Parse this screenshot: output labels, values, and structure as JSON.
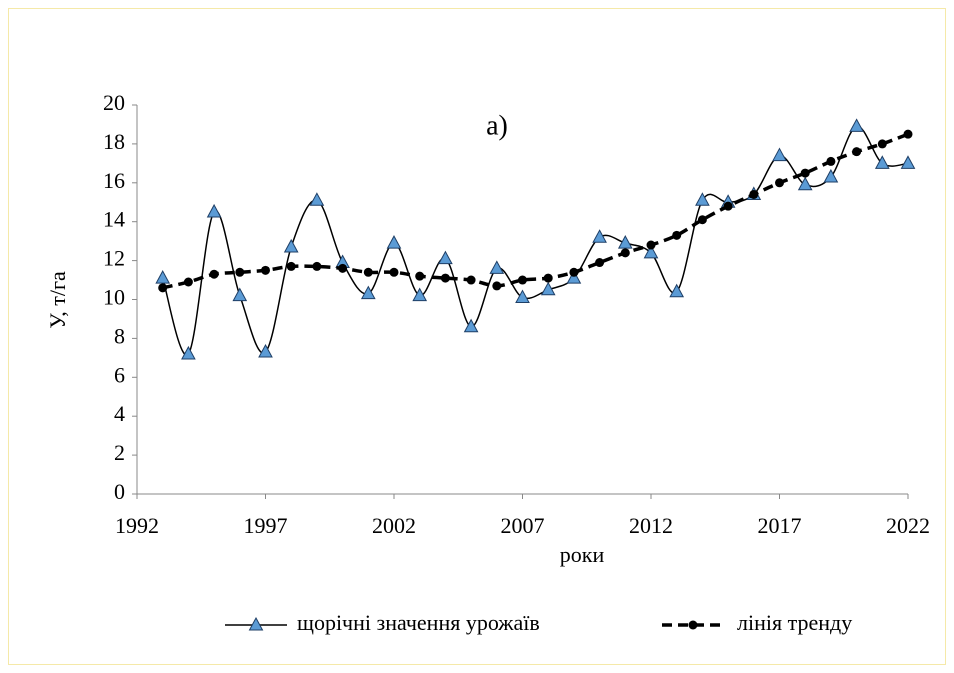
{
  "chart_data": {
    "type": "line",
    "annotation": "а)",
    "x_label": "роки",
    "y_label": "У, т/га",
    "x": [
      1993,
      1994,
      1995,
      1996,
      1997,
      1998,
      1999,
      2000,
      2001,
      2002,
      2003,
      2004,
      2005,
      2006,
      2007,
      2008,
      2009,
      2010,
      2011,
      2012,
      2013,
      2014,
      2015,
      2016,
      2017,
      2018,
      2019,
      2020,
      2021,
      2022
    ],
    "series": [
      {
        "name": "щорічні значення урожаїв",
        "color": "#000000",
        "marker": "triangle",
        "marker_color": "#5b9bd5",
        "dash": false,
        "values": [
          11.1,
          7.2,
          14.5,
          10.2,
          7.3,
          12.7,
          15.1,
          11.9,
          10.3,
          12.9,
          10.2,
          12.1,
          8.6,
          11.6,
          10.1,
          10.5,
          11.1,
          13.2,
          12.9,
          12.4,
          10.4,
          15.1,
          15.0,
          15.4,
          17.4,
          15.9,
          16.3,
          18.9,
          17.0,
          17.0
        ]
      },
      {
        "name": "лінія тренду",
        "color": "#000000",
        "marker": "circle",
        "marker_color": "#000000",
        "dash": true,
        "values": [
          10.6,
          10.9,
          11.3,
          11.4,
          11.5,
          11.7,
          11.7,
          11.6,
          11.4,
          11.4,
          11.2,
          11.1,
          11.0,
          10.7,
          11.0,
          11.1,
          11.4,
          11.9,
          12.4,
          12.8,
          13.3,
          14.1,
          14.8,
          15.4,
          16.0,
          16.5,
          17.1,
          17.6,
          18.0,
          18.5
        ]
      }
    ],
    "xlim": [
      1992,
      2022
    ],
    "xticks": [
      1992,
      1997,
      2002,
      2007,
      2012,
      2017,
      2022
    ],
    "ylim": [
      0,
      20
    ],
    "yticks": [
      0,
      2,
      4,
      6,
      8,
      10,
      12,
      14,
      16,
      18,
      20
    ],
    "smooth": true,
    "grid": false
  }
}
